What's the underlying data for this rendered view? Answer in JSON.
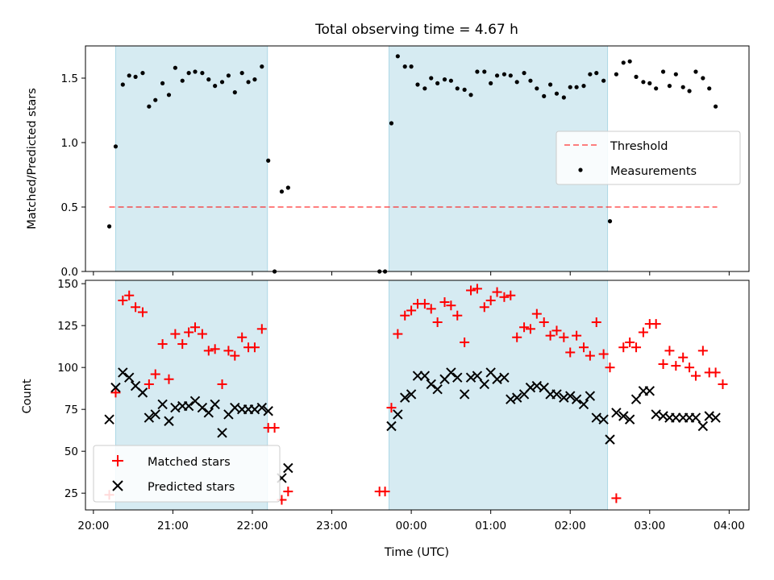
{
  "title": "Total observing time = 4.67 h",
  "colors": {
    "shade": "#add8e6",
    "threshold": "#ff0000",
    "measurement": "#000000",
    "matched": "#ff0000",
    "predicted": "#000000"
  },
  "chart_data": [
    {
      "type": "scatter",
      "ylabel": "Matched/Predicted stars",
      "xlabel": "",
      "xlim": [
        19.9,
        28.25
      ],
      "ylim": [
        0,
        1.75
      ],
      "x_unit": "hours since 00:00 on the first day shown; values over 24 fall after midnight",
      "yticks": [
        0.0,
        0.5,
        1.0,
        1.5
      ],
      "ytick_labels": [
        "0.0",
        "0.5",
        "1.0",
        "1.5"
      ],
      "shaded_intervals": [
        [
          20.28,
          22.19
        ],
        [
          23.72,
          26.47
        ]
      ],
      "legend": {
        "placement": "center-right",
        "entries": [
          "Threshold",
          "Measurements"
        ]
      },
      "threshold": {
        "name": "Threshold",
        "value": 0.5,
        "x_range": [
          20.2,
          27.85
        ],
        "style": "dashed"
      },
      "series": [
        {
          "name": "Measurements",
          "points": [
            [
              20.2,
              0.35
            ],
            [
              20.28,
              0.97
            ],
            [
              20.37,
              1.45
            ],
            [
              20.45,
              1.52
            ],
            [
              20.53,
              1.51
            ],
            [
              20.62,
              1.54
            ],
            [
              20.7,
              1.28
            ],
            [
              20.78,
              1.33
            ],
            [
              20.87,
              1.46
            ],
            [
              20.95,
              1.37
            ],
            [
              21.03,
              1.58
            ],
            [
              21.12,
              1.48
            ],
            [
              21.2,
              1.54
            ],
            [
              21.28,
              1.55
            ],
            [
              21.37,
              1.54
            ],
            [
              21.45,
              1.49
            ],
            [
              21.53,
              1.44
            ],
            [
              21.62,
              1.47
            ],
            [
              21.7,
              1.52
            ],
            [
              21.78,
              1.39
            ],
            [
              21.87,
              1.54
            ],
            [
              21.95,
              1.47
            ],
            [
              22.03,
              1.49
            ],
            [
              22.12,
              1.59
            ],
            [
              22.2,
              0.86
            ],
            [
              22.28,
              0.0
            ],
            [
              22.37,
              0.62
            ],
            [
              22.45,
              0.65
            ],
            [
              23.6,
              0.0
            ],
            [
              23.67,
              0.0
            ],
            [
              23.75,
              1.15
            ],
            [
              23.83,
              1.67
            ],
            [
              23.92,
              1.59
            ],
            [
              24.0,
              1.59
            ],
            [
              24.08,
              1.45
            ],
            [
              24.17,
              1.42
            ],
            [
              24.25,
              1.5
            ],
            [
              24.33,
              1.46
            ],
            [
              24.42,
              1.49
            ],
            [
              24.5,
              1.48
            ],
            [
              24.58,
              1.42
            ],
            [
              24.67,
              1.41
            ],
            [
              24.75,
              1.37
            ],
            [
              24.83,
              1.55
            ],
            [
              24.92,
              1.55
            ],
            [
              25.0,
              1.46
            ],
            [
              25.08,
              1.52
            ],
            [
              25.17,
              1.53
            ],
            [
              25.25,
              1.52
            ],
            [
              25.33,
              1.47
            ],
            [
              25.42,
              1.54
            ],
            [
              25.5,
              1.48
            ],
            [
              25.58,
              1.42
            ],
            [
              25.67,
              1.36
            ],
            [
              25.75,
              1.45
            ],
            [
              25.83,
              1.38
            ],
            [
              25.92,
              1.35
            ],
            [
              26.0,
              1.43
            ],
            [
              26.08,
              1.43
            ],
            [
              26.17,
              1.44
            ],
            [
              26.25,
              1.53
            ],
            [
              26.33,
              1.54
            ],
            [
              26.42,
              1.48
            ],
            [
              26.5,
              0.39
            ],
            [
              26.58,
              1.53
            ],
            [
              26.67,
              1.62
            ],
            [
              26.75,
              1.63
            ],
            [
              26.83,
              1.51
            ],
            [
              26.92,
              1.47
            ],
            [
              27.0,
              1.46
            ],
            [
              27.08,
              1.42
            ],
            [
              27.17,
              1.55
            ],
            [
              27.25,
              1.44
            ],
            [
              27.33,
              1.53
            ],
            [
              27.42,
              1.43
            ],
            [
              27.5,
              1.4
            ],
            [
              27.58,
              1.55
            ],
            [
              27.67,
              1.5
            ],
            [
              27.75,
              1.42
            ],
            [
              27.83,
              1.28
            ]
          ]
        }
      ]
    },
    {
      "type": "scatter",
      "ylabel": "Count",
      "xlabel": "Time (UTC)",
      "xlim": [
        19.9,
        28.25
      ],
      "ylim": [
        15,
        152
      ],
      "x_unit": "hours since 00:00 on the first day shown; values over 24 fall after midnight",
      "yticks": [
        25,
        50,
        75,
        100,
        125,
        150
      ],
      "ytick_labels": [
        "25",
        "50",
        "75",
        "100",
        "125",
        "150"
      ],
      "xticks": [
        20,
        21,
        22,
        23,
        24,
        25,
        26,
        27,
        28
      ],
      "xtick_labels": [
        "20:00",
        "21:00",
        "22:00",
        "23:00",
        "00:00",
        "01:00",
        "02:00",
        "03:00",
        "04:00"
      ],
      "shaded_intervals": [
        [
          20.28,
          22.19
        ],
        [
          23.72,
          26.47
        ]
      ],
      "legend": {
        "placement": "lower-left",
        "entries": [
          "Matched stars",
          "Predicted stars"
        ]
      },
      "series": [
        {
          "name": "Matched stars",
          "marker": "plus",
          "points": [
            [
              20.2,
              24
            ],
            [
              20.28,
              85
            ],
            [
              20.37,
              140
            ],
            [
              20.45,
              143
            ],
            [
              20.53,
              136
            ],
            [
              20.62,
              133
            ],
            [
              20.7,
              90
            ],
            [
              20.78,
              96
            ],
            [
              20.87,
              114
            ],
            [
              20.95,
              93
            ],
            [
              21.03,
              120
            ],
            [
              21.12,
              114
            ],
            [
              21.2,
              121
            ],
            [
              21.28,
              124
            ],
            [
              21.37,
              120
            ],
            [
              21.45,
              110
            ],
            [
              21.53,
              111
            ],
            [
              21.62,
              90
            ],
            [
              21.7,
              110
            ],
            [
              21.78,
              107
            ],
            [
              21.87,
              118
            ],
            [
              21.95,
              112
            ],
            [
              22.03,
              112
            ],
            [
              22.12,
              123
            ],
            [
              22.2,
              64
            ],
            [
              22.28,
              64
            ],
            [
              22.37,
              21
            ],
            [
              22.45,
              26
            ],
            [
              23.6,
              26
            ],
            [
              23.67,
              26
            ],
            [
              23.75,
              76
            ],
            [
              23.83,
              120
            ],
            [
              23.92,
              131
            ],
            [
              24.0,
              134
            ],
            [
              24.08,
              138
            ],
            [
              24.17,
              138
            ],
            [
              24.25,
              135
            ],
            [
              24.33,
              127
            ],
            [
              24.42,
              139
            ],
            [
              24.5,
              137
            ],
            [
              24.58,
              131
            ],
            [
              24.67,
              115
            ],
            [
              24.75,
              146
            ],
            [
              24.83,
              147
            ],
            [
              24.92,
              136
            ],
            [
              25.0,
              140
            ],
            [
              25.08,
              145
            ],
            [
              25.17,
              142
            ],
            [
              25.25,
              143
            ],
            [
              25.33,
              118
            ],
            [
              25.42,
              124
            ],
            [
              25.5,
              123
            ],
            [
              25.58,
              132
            ],
            [
              25.67,
              127
            ],
            [
              25.75,
              119
            ],
            [
              25.83,
              122
            ],
            [
              25.92,
              118
            ],
            [
              26.0,
              109
            ],
            [
              26.08,
              119
            ],
            [
              26.17,
              112
            ],
            [
              26.25,
              107
            ],
            [
              26.33,
              127
            ],
            [
              26.42,
              108
            ],
            [
              26.5,
              100
            ],
            [
              26.58,
              22
            ],
            [
              26.67,
              112
            ],
            [
              26.75,
              115
            ],
            [
              26.83,
              112
            ],
            [
              26.92,
              121
            ],
            [
              27.0,
              126
            ],
            [
              27.08,
              126
            ],
            [
              27.17,
              102
            ],
            [
              27.25,
              110
            ],
            [
              27.33,
              101
            ],
            [
              27.42,
              106
            ],
            [
              27.5,
              100
            ],
            [
              27.58,
              95
            ],
            [
              27.67,
              110
            ],
            [
              27.75,
              97
            ],
            [
              27.83,
              97
            ],
            [
              27.92,
              90
            ]
          ]
        },
        {
          "name": "Predicted stars",
          "marker": "x",
          "points": [
            [
              20.2,
              69
            ],
            [
              20.28,
              88
            ],
            [
              20.37,
              97
            ],
            [
              20.45,
              94
            ],
            [
              20.53,
              89
            ],
            [
              20.62,
              85
            ],
            [
              20.7,
              70
            ],
            [
              20.78,
              72
            ],
            [
              20.87,
              78
            ],
            [
              20.95,
              68
            ],
            [
              21.03,
              76
            ],
            [
              21.12,
              77
            ],
            [
              21.2,
              77
            ],
            [
              21.28,
              80
            ],
            [
              21.37,
              76
            ],
            [
              21.45,
              73
            ],
            [
              21.53,
              78
            ],
            [
              21.62,
              61
            ],
            [
              21.7,
              72
            ],
            [
              21.78,
              76
            ],
            [
              21.87,
              75
            ],
            [
              21.95,
              75
            ],
            [
              22.03,
              75
            ],
            [
              22.12,
              76
            ],
            [
              22.2,
              74
            ],
            [
              22.37,
              34
            ],
            [
              22.45,
              40
            ],
            [
              23.75,
              65
            ],
            [
              23.83,
              72
            ],
            [
              23.92,
              82
            ],
            [
              24.0,
              84
            ],
            [
              24.08,
              95
            ],
            [
              24.17,
              95
            ],
            [
              24.25,
              90
            ],
            [
              24.33,
              87
            ],
            [
              24.42,
              93
            ],
            [
              24.5,
              97
            ],
            [
              24.58,
              94
            ],
            [
              24.67,
              84
            ],
            [
              24.75,
              94
            ],
            [
              24.83,
              95
            ],
            [
              24.92,
              90
            ],
            [
              25.0,
              97
            ],
            [
              25.08,
              93
            ],
            [
              25.17,
              94
            ],
            [
              25.25,
              81
            ],
            [
              25.33,
              82
            ],
            [
              25.42,
              84
            ],
            [
              25.5,
              88
            ],
            [
              25.58,
              89
            ],
            [
              25.67,
              88
            ],
            [
              25.75,
              84
            ],
            [
              25.83,
              84
            ],
            [
              25.92,
              82
            ],
            [
              26.0,
              83
            ],
            [
              26.08,
              81
            ],
            [
              26.17,
              78
            ],
            [
              26.25,
              83
            ],
            [
              26.33,
              70
            ],
            [
              26.42,
              69
            ],
            [
              26.5,
              57
            ],
            [
              26.58,
              73
            ],
            [
              26.67,
              71
            ],
            [
              26.75,
              69
            ],
            [
              26.83,
              81
            ],
            [
              26.92,
              86
            ],
            [
              27.0,
              86
            ],
            [
              27.08,
              72
            ],
            [
              27.17,
              71
            ],
            [
              27.25,
              70
            ],
            [
              27.33,
              70
            ],
            [
              27.42,
              70
            ],
            [
              27.5,
              70
            ],
            [
              27.58,
              70
            ],
            [
              27.67,
              65
            ],
            [
              27.75,
              71
            ],
            [
              27.83,
              70
            ]
          ]
        }
      ]
    }
  ]
}
